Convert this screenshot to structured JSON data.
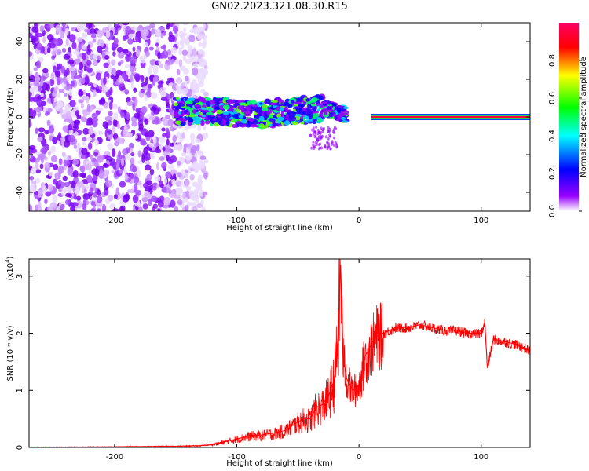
{
  "title": "GN02.2023.321.08.30.R15",
  "chart_data": [
    {
      "type": "heatmap",
      "xlabel": "Height of straight line (km)",
      "ylabel": "Frequency (Hz)",
      "xlim": [
        -270,
        140
      ],
      "ylim": [
        -50,
        50
      ],
      "xticks": [
        -200,
        -100,
        0,
        100
      ],
      "yticks": [
        -40,
        -20,
        0,
        20,
        40
      ],
      "colorbar": {
        "label": "Normalized spectral amplitude",
        "range": [
          0,
          1
        ],
        "ticks": [
          "0.0",
          "0.2",
          "0.4",
          "0.6",
          "0.8"
        ],
        "colors": [
          "#ffffff",
          "#9900ff",
          "#0000ff",
          "#00ffff",
          "#00ff00",
          "#ffff00",
          "#ff0000",
          "#ff0066"
        ]
      },
      "features": {
        "noise_region_x": [
          -270,
          -135
        ],
        "signal_track": [
          [
            -150,
            3
          ],
          [
            -120,
            3
          ],
          [
            -100,
            2
          ],
          [
            -80,
            1
          ],
          [
            -60,
            3
          ],
          [
            -40,
            4
          ],
          [
            -25,
            4
          ],
          [
            -10,
            1
          ],
          [
            0,
            1
          ],
          [
            20,
            0
          ],
          [
            140,
            0
          ]
        ],
        "steady_line_x": [
          10,
          140
        ],
        "steady_line_y": 0
      }
    },
    {
      "type": "line",
      "xlabel": "Height of straight line (km)",
      "ylabel": "SNR (10 * v/v)",
      "scale_label": "(x10",
      "scale_exponent": "4",
      "xlim": [
        -270,
        140
      ],
      "ylim": [
        0,
        3.3
      ],
      "xticks": [
        -200,
        -100,
        0,
        100
      ],
      "yticks": [
        0,
        1,
        2,
        3
      ],
      "color": "#ff0000",
      "series": [
        {
          "x": [
            -270,
            -200,
            -150,
            -130,
            -120,
            -110,
            -100,
            -90,
            -80,
            -70,
            -60,
            -50,
            -45,
            -40,
            -35,
            -30,
            -25,
            -20,
            -17,
            -15,
            -13,
            -10,
            -5,
            0,
            5,
            10,
            15,
            20,
            30,
            40,
            50,
            60,
            70,
            80,
            90,
            100,
            103,
            105,
            110,
            120,
            130,
            140
          ],
          "y": [
            0.0,
            0.01,
            0.02,
            0.03,
            0.05,
            0.1,
            0.15,
            0.2,
            0.22,
            0.25,
            0.3,
            0.45,
            0.5,
            0.5,
            0.7,
            0.75,
            0.9,
            1.2,
            2.0,
            3.2,
            1.6,
            1.2,
            1.0,
            1.1,
            1.6,
            1.8,
            2.0,
            2.0,
            2.1,
            2.1,
            2.15,
            2.1,
            2.05,
            2.05,
            2.0,
            2.0,
            2.2,
            1.4,
            1.9,
            1.85,
            1.8,
            1.7
          ]
        }
      ]
    }
  ]
}
